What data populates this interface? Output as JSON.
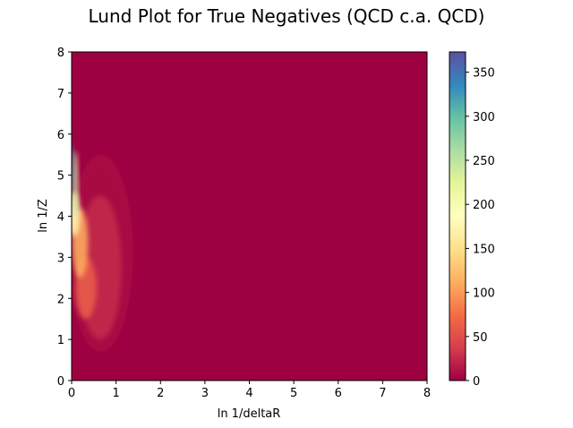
{
  "chart_data": {
    "type": "heatmap",
    "title": "Lund Plot for True Negatives (QCD c.a. QCD)",
    "xlabel": "ln 1/deltaR",
    "ylabel": "ln 1/Z",
    "xlim": [
      0,
      8
    ],
    "ylim": [
      0,
      8
    ],
    "x_ticks": [
      "0",
      "1",
      "2",
      "3",
      "4",
      "5",
      "6",
      "7",
      "8"
    ],
    "y_ticks": [
      "0",
      "1",
      "2",
      "3",
      "4",
      "5",
      "6",
      "7",
      "8"
    ],
    "colorbar": {
      "colormap": "Spectral",
      "range": [
        0,
        373
      ],
      "ticks": [
        "0",
        "50",
        "100",
        "150",
        "200",
        "250",
        "300",
        "350"
      ]
    },
    "density_regions": [
      {
        "x": [
          0.0,
          0.05
        ],
        "y": [
          4.6,
          5.8
        ],
        "approx_count": 330
      },
      {
        "x": [
          0.05,
          0.15
        ],
        "y": [
          4.0,
          5.6
        ],
        "approx_count": 240
      },
      {
        "x": [
          0.0,
          0.2
        ],
        "y": [
          3.5,
          4.6
        ],
        "approx_count": 180
      },
      {
        "x": [
          0.1,
          0.4
        ],
        "y": [
          2.5,
          4.2
        ],
        "approx_count": 110
      },
      {
        "x": [
          0.2,
          0.6
        ],
        "y": [
          1.5,
          3.0
        ],
        "approx_count": 60
      },
      {
        "x": [
          0.4,
          1.2
        ],
        "y": [
          1.0,
          4.5
        ],
        "approx_count": 25
      },
      {
        "x": [
          0.3,
          1.5
        ],
        "y": [
          0.7,
          5.5
        ],
        "approx_count": 8
      },
      {
        "x": [
          1.5,
          8.0
        ],
        "y": [
          0.0,
          8.0
        ],
        "approx_count": 0
      }
    ]
  }
}
